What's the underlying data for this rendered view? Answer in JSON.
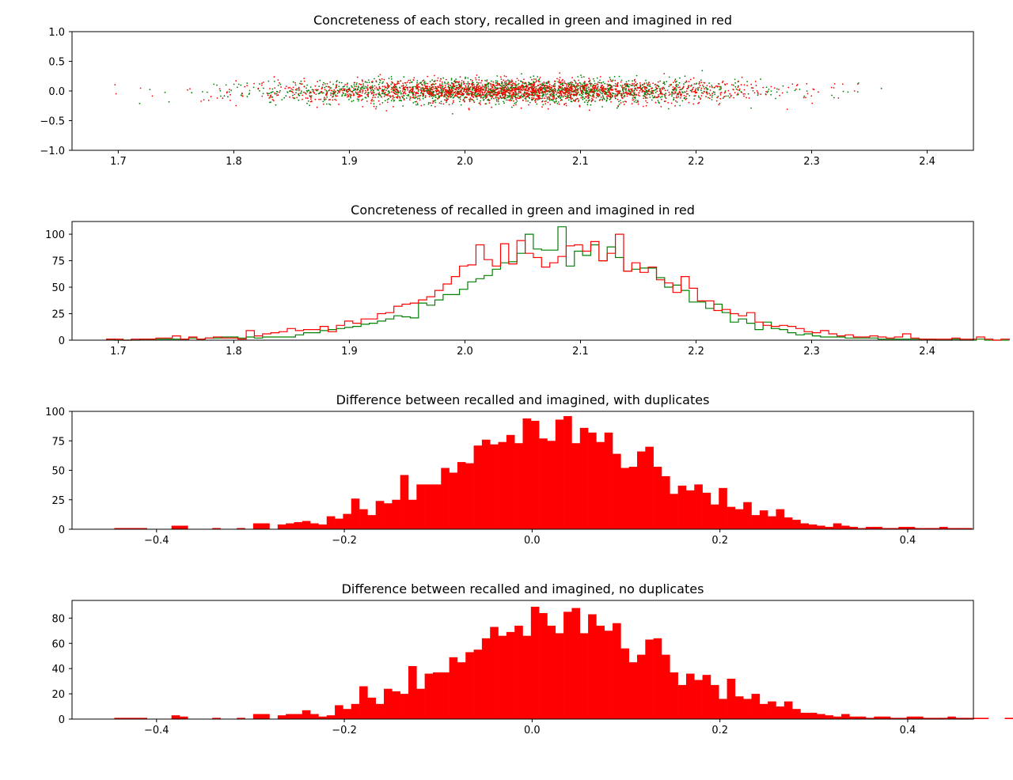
{
  "colors": {
    "recalled": "#008000",
    "imagined": "#ff0000",
    "bars": "#ff0000",
    "axes": "#000000"
  },
  "chart_data": [
    {
      "type": "scatter",
      "title": "Concreteness of each story, recalled in green and imagined in red",
      "xlabel": "",
      "ylabel": "",
      "xlim": [
        1.66,
        2.44
      ],
      "ylim": [
        -1.0,
        1.0
      ],
      "x_ticks": [
        1.7,
        1.8,
        1.9,
        2.0,
        2.1,
        2.2,
        2.3,
        2.4
      ],
      "x_tick_labels": [
        "1.7",
        "1.8",
        "1.9",
        "2.0",
        "2.1",
        "2.2",
        "2.3",
        "2.4"
      ],
      "y_ticks": [
        -1.0,
        -0.5,
        0.0,
        0.5,
        1.0
      ],
      "y_tick_labels": [
        "−1.0",
        "−0.5",
        "0.0",
        "0.5",
        "1.0"
      ],
      "point_distribution": {
        "x_mean": 2.04,
        "x_sd": 0.1,
        "x_min": 1.69,
        "x_max": 2.4,
        "y_mean": 0.0,
        "y_sd": 0.1
      },
      "series": [
        {
          "name": "recalled",
          "color": "#008000"
        },
        {
          "name": "imagined",
          "color": "#ff0000"
        }
      ]
    },
    {
      "type": "step-histogram",
      "title": "Concreteness of recalled in green and imagined in red",
      "xlabel": "",
      "ylabel": "",
      "xlim": [
        1.66,
        2.44
      ],
      "ylim": [
        0,
        112
      ],
      "bin_start": 1.69,
      "bin_width": 0.0071,
      "x_ticks": [
        1.7,
        1.8,
        1.9,
        2.0,
        2.1,
        2.2,
        2.3,
        2.4
      ],
      "x_tick_labels": [
        "1.7",
        "1.8",
        "1.9",
        "2.0",
        "2.1",
        "2.2",
        "2.3",
        "2.4"
      ],
      "y_ticks": [
        0,
        25,
        50,
        75,
        100
      ],
      "y_tick_labels": [
        "0",
        "25",
        "50",
        "75",
        "100"
      ],
      "series": [
        {
          "name": "recalled",
          "color": "#008000",
          "values": [
            1,
            0,
            0,
            0,
            1,
            1,
            1,
            1,
            1,
            1,
            2,
            1,
            2,
            2,
            3,
            3,
            2,
            3,
            2,
            3,
            3,
            3,
            3,
            5,
            7,
            7,
            9,
            10,
            11,
            12,
            13,
            15,
            16,
            18,
            20,
            23,
            22,
            21,
            35,
            33,
            38,
            43,
            43,
            48,
            55,
            58,
            61,
            67,
            73,
            74,
            82,
            100,
            86,
            85,
            85,
            107,
            70,
            84,
            80,
            90,
            75,
            88,
            78,
            65,
            67,
            68,
            68,
            59,
            50,
            52,
            47,
            36,
            36,
            30,
            34,
            26,
            17,
            20,
            16,
            10,
            17,
            11,
            10,
            7,
            5,
            6,
            4,
            3,
            3,
            3,
            2,
            2,
            2,
            2,
            1,
            1,
            1,
            1,
            1,
            1,
            1,
            0,
            0,
            1,
            0,
            0,
            1,
            0,
            0,
            0
          ]
        },
        {
          "name": "imagined",
          "color": "#ff0000",
          "values": [
            1,
            1,
            0,
            1,
            1,
            1,
            2,
            2,
            4,
            1,
            3,
            1,
            2,
            3,
            2,
            2,
            1,
            9,
            4,
            6,
            7,
            8,
            11,
            9,
            10,
            10,
            13,
            8,
            14,
            18,
            16,
            20,
            20,
            25,
            26,
            32,
            34,
            35,
            38,
            41,
            47,
            53,
            60,
            70,
            71,
            90,
            76,
            70,
            91,
            72,
            94,
            82,
            78,
            69,
            73,
            79,
            89,
            90,
            84,
            93,
            75,
            82,
            100,
            65,
            73,
            64,
            69,
            57,
            54,
            45,
            60,
            49,
            37,
            37,
            28,
            29,
            25,
            23,
            26,
            17,
            14,
            13,
            14,
            13,
            11,
            8,
            7,
            9,
            6,
            4,
            5,
            3,
            3,
            4,
            3,
            2,
            3,
            6,
            2,
            1,
            1,
            1,
            1,
            2,
            1,
            1,
            3,
            1,
            0,
            1
          ]
        }
      ]
    },
    {
      "type": "bar",
      "title": "Difference between recalled and imagined, with duplicates",
      "xlabel": "",
      "ylabel": "",
      "xlim": [
        -0.49,
        0.47
      ],
      "ylim": [
        0,
        100
      ],
      "bin_start": -0.445,
      "bin_width": 0.0087,
      "x_ticks": [
        -0.4,
        -0.2,
        0.0,
        0.2,
        0.4
      ],
      "x_tick_labels": [
        "−0.4",
        "−0.2",
        "0.0",
        "0.2",
        "0.4"
      ],
      "y_ticks": [
        0,
        25,
        50,
        75,
        100
      ],
      "y_tick_labels": [
        "0",
        "25",
        "50",
        "75",
        "100"
      ],
      "values": [
        1,
        1,
        1,
        1,
        0,
        0,
        0,
        3,
        3,
        0,
        0,
        0,
        1,
        0,
        0,
        1,
        0,
        5,
        5,
        0,
        4,
        5,
        6,
        7,
        5,
        4,
        11,
        9,
        13,
        26,
        17,
        12,
        24,
        22,
        25,
        46,
        25,
        38,
        38,
        38,
        52,
        48,
        57,
        56,
        71,
        76,
        72,
        74,
        80,
        73,
        94,
        92,
        77,
        75,
        93,
        96,
        73,
        86,
        82,
        74,
        82,
        64,
        52,
        53,
        66,
        70,
        53,
        45,
        30,
        37,
        33,
        38,
        31,
        21,
        35,
        19,
        17,
        23,
        12,
        16,
        11,
        17,
        10,
        8,
        5,
        4,
        3,
        2,
        5,
        3,
        2,
        1,
        2,
        2,
        1,
        1,
        2,
        2,
        1,
        1,
        1,
        2,
        1,
        1,
        1
      ]
    },
    {
      "type": "bar",
      "title": "Difference between recalled and imagined, no duplicates",
      "xlabel": "",
      "ylabel": "",
      "xlim": [
        -0.49,
        0.47
      ],
      "ylim": [
        0,
        94
      ],
      "bin_start": -0.445,
      "bin_width": 0.0087,
      "x_ticks": [
        -0.4,
        -0.2,
        0.0,
        0.2,
        0.4
      ],
      "x_tick_labels": [
        "−0.4",
        "−0.2",
        "0.0",
        "0.2",
        "0.4"
      ],
      "y_ticks": [
        0,
        20,
        40,
        60,
        80
      ],
      "y_tick_labels": [
        "0",
        "20",
        "40",
        "60",
        "80"
      ],
      "values": [
        1,
        1,
        1,
        1,
        0,
        0,
        0,
        3,
        2,
        0,
        0,
        0,
        1,
        0,
        0,
        1,
        0,
        4,
        4,
        0,
        3,
        4,
        4,
        7,
        4,
        2,
        3,
        11,
        8,
        12,
        26,
        17,
        12,
        24,
        22,
        20,
        42,
        24,
        36,
        37,
        37,
        49,
        45,
        53,
        55,
        64,
        73,
        66,
        69,
        74,
        66,
        89,
        84,
        74,
        68,
        85,
        88,
        68,
        83,
        74,
        70,
        76,
        56,
        45,
        51,
        63,
        64,
        51,
        37,
        27,
        36,
        31,
        35,
        27,
        16,
        32,
        18,
        16,
        20,
        12,
        14,
        10,
        14,
        8,
        5,
        5,
        4,
        3,
        2,
        4,
        2,
        2,
        1,
        2,
        2,
        1,
        1,
        2,
        2,
        1,
        1,
        1,
        2,
        1,
        1,
        1,
        1,
        0,
        0,
        1
      ]
    }
  ]
}
